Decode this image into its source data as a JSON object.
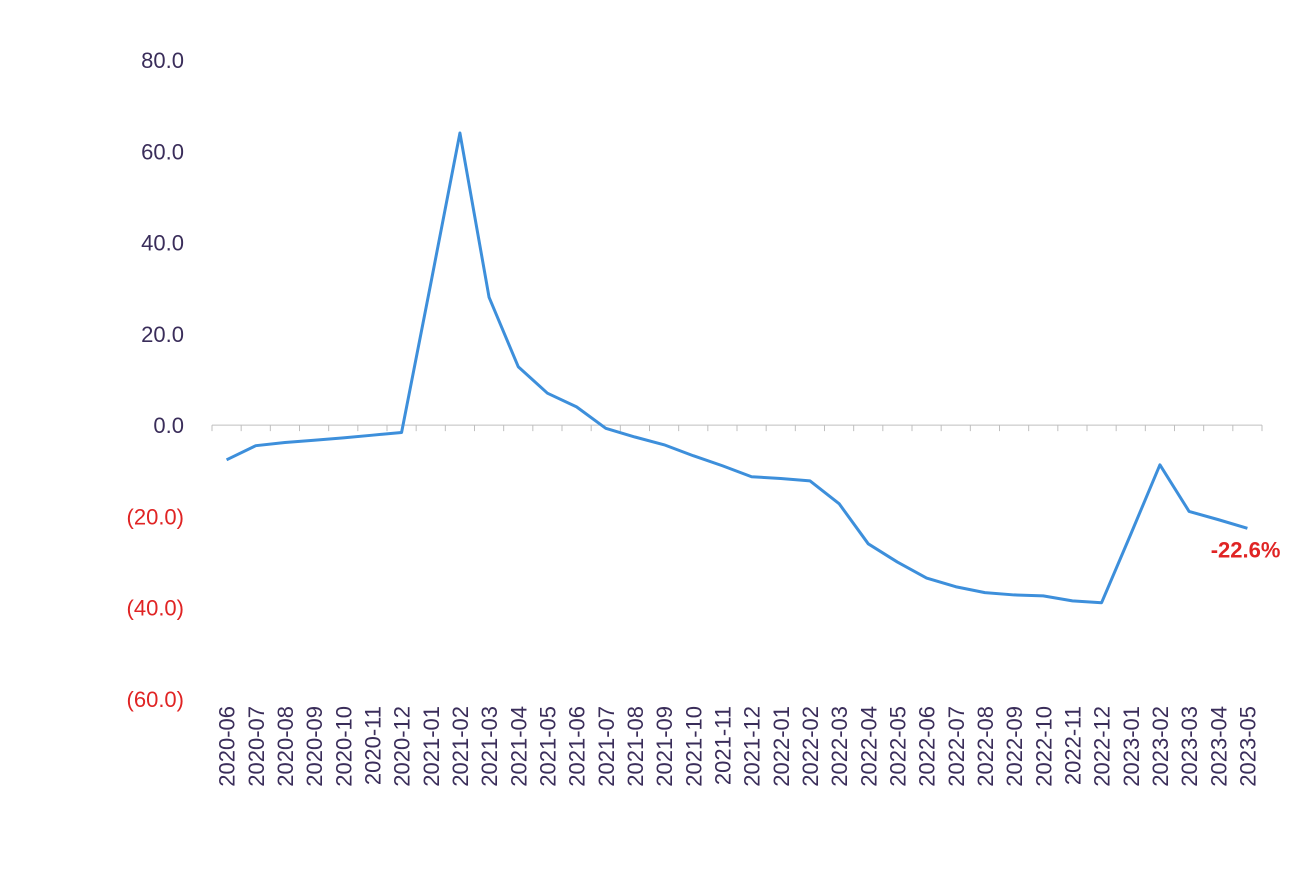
{
  "chart_data": {
    "type": "line",
    "categories": [
      "2020-06",
      "2020-07",
      "2020-08",
      "2020-09",
      "2020-10",
      "2020-11",
      "2020-12",
      "2021-01",
      "2021-02",
      "2021-03",
      "2021-04",
      "2021-05",
      "2021-06",
      "2021-07",
      "2021-08",
      "2021-09",
      "2021-10",
      "2021-11",
      "2021-12",
      "2022-01",
      "2022-02",
      "2022-03",
      "2022-04",
      "2022-05",
      "2022-06",
      "2022-07",
      "2022-08",
      "2022-09",
      "2022-10",
      "2022-11",
      "2022-12",
      "2023-01",
      "2023-02",
      "2023-03",
      "2023-04",
      "2023-05"
    ],
    "series": [
      {
        "color": "#3d8fdb",
        "values": [
          -7.6,
          -4.5,
          -3.8,
          -3.3,
          -2.8,
          -2.2,
          -1.6,
          31,
          64,
          28,
          12.8,
          7,
          4,
          -0.7,
          -2.6,
          -4.3,
          -6.7,
          -8.9,
          -11.3,
          -11.7,
          -12.2,
          -17.2,
          -26,
          -30,
          -33.5,
          -35.4,
          -36.7,
          -37.2,
          -37.4,
          -38.5,
          -38.9,
          -23.9,
          -8.7,
          -18.9,
          -20.7,
          -22.6
        ]
      }
    ],
    "ylim": [
      -60,
      80
    ],
    "yticks": [
      {
        "value": 80,
        "label": "80.0"
      },
      {
        "value": 60,
        "label": "60.0"
      },
      {
        "value": 40,
        "label": "40.0"
      },
      {
        "value": 20,
        "label": "20.0"
      },
      {
        "value": 0,
        "label": "0.0"
      },
      {
        "value": -20,
        "label": "(20.0)"
      },
      {
        "value": -40,
        "label": "(40.0)"
      },
      {
        "value": -60,
        "label": "(60.0)"
      }
    ],
    "tick_label_color": "#3a2d5a",
    "negative_tick_label_color": "#e02424",
    "annotation": "-22.6%",
    "annotation_color": "#e02424",
    "grid": false
  }
}
